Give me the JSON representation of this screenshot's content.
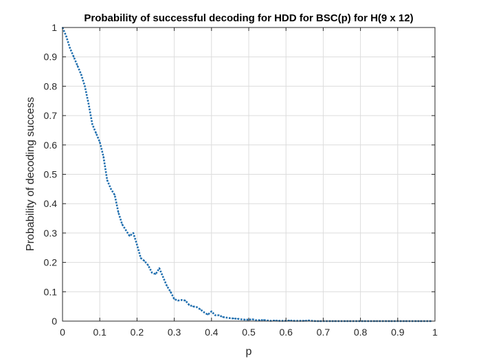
{
  "chart_data": {
    "type": "line",
    "title": "Probability of successful decoding for HDD for BSC(p) for H(9 x 12)",
    "xlabel": "p",
    "ylabel": "Probability of decoding success",
    "xlim": [
      0,
      1
    ],
    "ylim": [
      0,
      1
    ],
    "xticks": [
      0,
      0.1,
      0.2,
      0.3,
      0.4,
      0.5,
      0.6,
      0.7,
      0.8,
      0.9,
      1
    ],
    "yticks": [
      0,
      0.1,
      0.2,
      0.3,
      0.4,
      0.5,
      0.6,
      0.7,
      0.8,
      0.9,
      1
    ],
    "grid": true,
    "line_style": "dotted",
    "colors": {
      "series": "#1f6eae",
      "grid": "#dcdcdc",
      "axis": "#262626"
    },
    "series": [
      {
        "x": [
          0,
          0.01,
          0.02,
          0.03,
          0.04,
          0.05,
          0.06,
          0.07,
          0.08,
          0.09,
          0.1,
          0.11,
          0.12,
          0.13,
          0.14,
          0.15,
          0.16,
          0.17,
          0.18,
          0.19,
          0.2,
          0.21,
          0.22,
          0.23,
          0.24,
          0.25,
          0.26,
          0.27,
          0.28,
          0.29,
          0.3,
          0.31,
          0.32,
          0.33,
          0.34,
          0.35,
          0.36,
          0.37,
          0.38,
          0.39,
          0.4,
          0.41,
          0.42,
          0.43,
          0.44,
          0.45,
          0.46,
          0.47,
          0.48,
          0.49,
          0.5,
          0.51,
          0.52,
          0.53,
          0.54,
          0.55,
          0.56,
          0.57,
          0.58,
          0.59,
          0.6,
          0.61,
          0.62,
          0.63,
          0.64,
          0.65,
          0.66,
          0.67,
          0.68,
          0.69,
          0.7,
          0.71,
          0.72,
          0.73,
          0.74,
          0.75,
          0.76,
          0.77,
          0.78,
          0.79,
          0.8,
          0.81,
          0.82,
          0.83,
          0.84,
          0.85,
          0.86,
          0.87,
          0.88,
          0.89,
          0.9,
          0.91,
          0.92,
          0.93,
          0.94,
          0.95,
          0.96,
          0.97,
          0.98,
          0.99
        ],
        "values": [
          1,
          0.97,
          0.93,
          0.9,
          0.87,
          0.84,
          0.8,
          0.74,
          0.67,
          0.64,
          0.61,
          0.56,
          0.48,
          0.45,
          0.43,
          0.37,
          0.33,
          0.31,
          0.29,
          0.3,
          0.26,
          0.215,
          0.205,
          0.19,
          0.165,
          0.16,
          0.18,
          0.15,
          0.12,
          0.1,
          0.075,
          0.07,
          0.072,
          0.07,
          0.055,
          0.05,
          0.048,
          0.04,
          0.03,
          0.022,
          0.033,
          0.02,
          0.02,
          0.014,
          0.012,
          0.01,
          0.009,
          0.008,
          0.006,
          0.005,
          0.005,
          0.006,
          0.003,
          0.003,
          0.004,
          0.002,
          0.001,
          0.002,
          0.001,
          0.001,
          0.001,
          0.002,
          0.001,
          0.001,
          0.001,
          0.001,
          0.002,
          0.001,
          0,
          0,
          0,
          0,
          0,
          0,
          0,
          0,
          0,
          0,
          0,
          0,
          0,
          0,
          0,
          0,
          0,
          0,
          0,
          0,
          0,
          0,
          0,
          0,
          0,
          0,
          0,
          0,
          0,
          0,
          0,
          0
        ]
      }
    ]
  }
}
